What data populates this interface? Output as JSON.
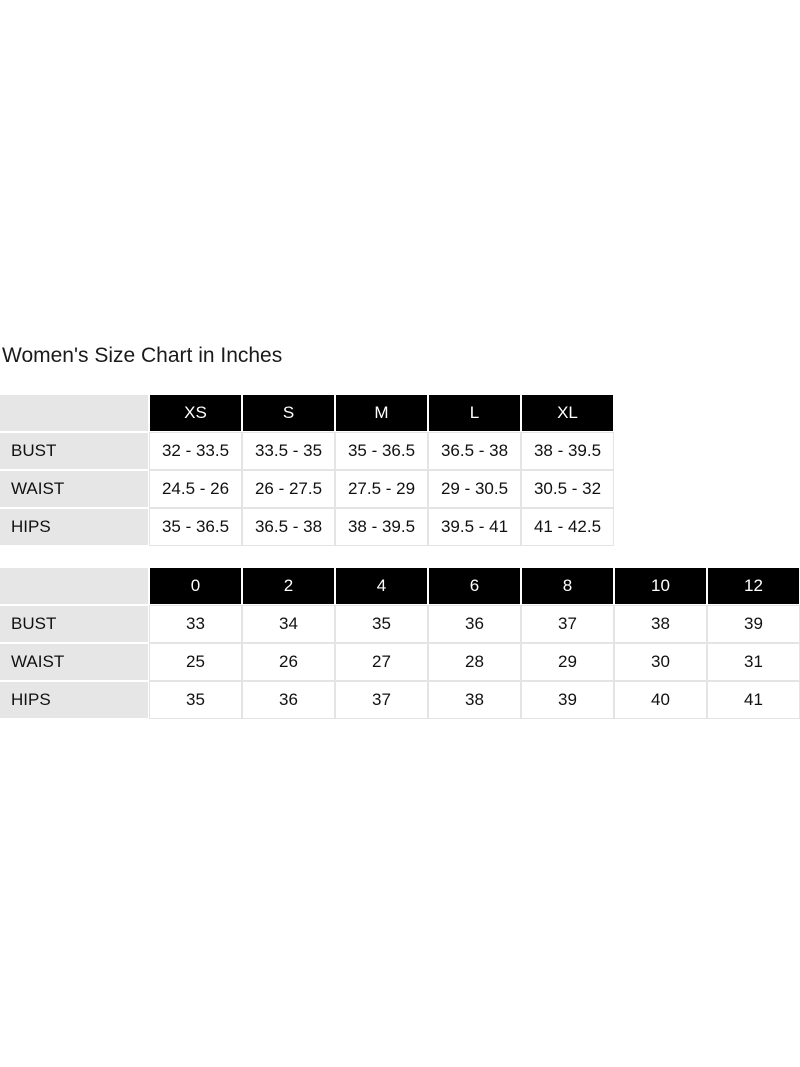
{
  "title": "Women's Size Chart in Inches",
  "tables": [
    {
      "headers": [
        "XS",
        "S",
        "M",
        "L",
        "XL"
      ],
      "rows": [
        {
          "label": "BUST",
          "values": [
            "32 - 33.5",
            "33.5 - 35",
            "35 - 36.5",
            "36.5 - 38",
            "38 - 39.5"
          ]
        },
        {
          "label": "WAIST",
          "values": [
            "24.5 - 26",
            "26 - 27.5",
            "27.5 - 29",
            "29 - 30.5",
            "30.5 - 32"
          ]
        },
        {
          "label": "HIPS",
          "values": [
            "35 - 36.5",
            "36.5 - 38",
            "38 - 39.5",
            "39.5 - 41",
            "41 - 42.5"
          ]
        }
      ]
    },
    {
      "headers": [
        "0",
        "2",
        "4",
        "6",
        "8",
        "10",
        "12"
      ],
      "rows": [
        {
          "label": "BUST",
          "values": [
            "33",
            "34",
            "35",
            "36",
            "37",
            "38",
            "39"
          ]
        },
        {
          "label": "WAIST",
          "values": [
            "25",
            "26",
            "27",
            "28",
            "29",
            "30",
            "31"
          ]
        },
        {
          "label": "HIPS",
          "values": [
            "35",
            "36",
            "37",
            "38",
            "39",
            "40",
            "41"
          ]
        }
      ]
    }
  ],
  "colors": {
    "header_bg": "#000000",
    "header_text": "#ffffff",
    "label_bg": "#e6e6e6"
  }
}
